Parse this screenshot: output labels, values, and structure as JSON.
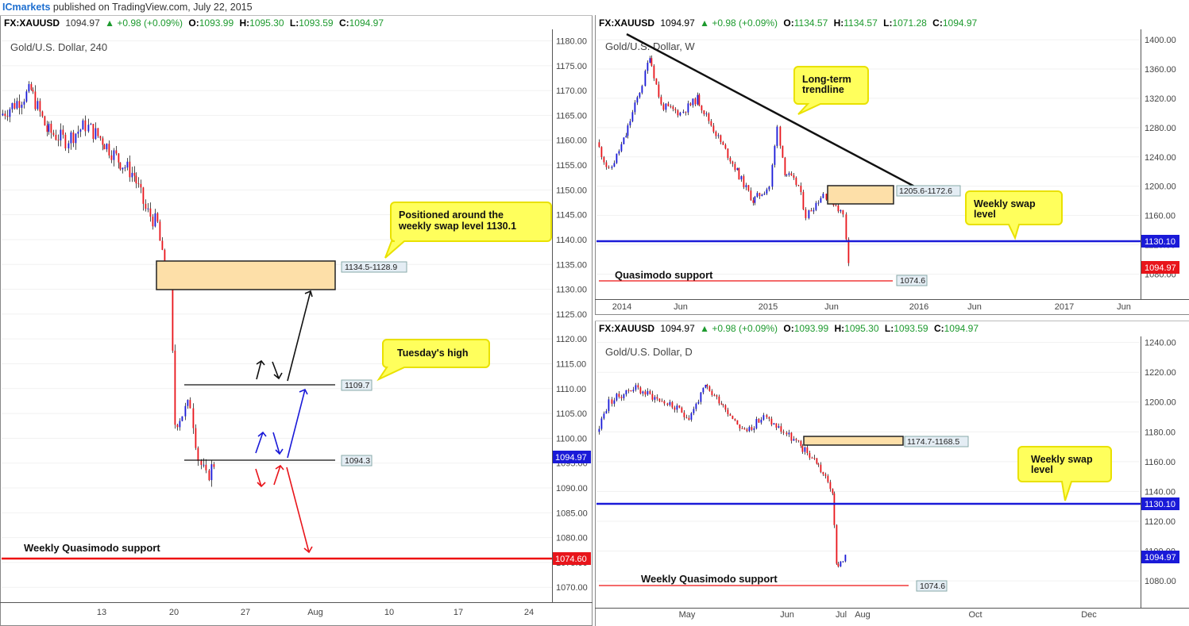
{
  "header": {
    "brand": "ICmarkets",
    "published": " published on TradingView.com, July 22, 2015"
  },
  "colors": {
    "bull": "#1a1ad8",
    "bear": "#e8151b",
    "ohlc_green": "#1d9a2e",
    "callout_fill": "#ffff5c",
    "callout_border": "#e9e100",
    "zone_fill": "#fddfa8"
  },
  "chart_data": [
    {
      "type": "candlestick",
      "symbol_line": {
        "symbol": "FX:XAUUSD",
        "last": "1094.97",
        "change": "+0.98 (+0.09%)",
        "open": "1093.99",
        "high": "1095.30",
        "low": "1093.59",
        "close": "1094.97"
      },
      "title": "Gold/U.S. Dollar, 240",
      "ylim": [
        1067,
        1182
      ],
      "y_ticks": [
        "1070.00",
        "1075.00",
        "1080.00",
        "1085.00",
        "1090.00",
        "1095.00",
        "1100.00",
        "1105.00",
        "1110.00",
        "1115.00",
        "1120.00",
        "1125.00",
        "1130.00",
        "1135.00",
        "1140.00",
        "1145.00",
        "1150.00",
        "1155.00",
        "1160.00",
        "1165.00",
        "1170.00",
        "1175.00",
        "1180.00"
      ],
      "x_ticks": [
        "13",
        "20",
        "27",
        "Aug",
        "10",
        "17",
        "24"
      ],
      "price_badge": "1094.97",
      "levels": [
        {
          "label": "1109.7",
          "value": 1109.7
        },
        {
          "label": "1094.3",
          "value": 1094.3
        },
        {
          "label": "1074.60",
          "value": 1074.6
        }
      ],
      "zone": {
        "label": "1134.5-1128.9",
        "top": 1134.5,
        "bottom": 1128.9
      },
      "annotations": {
        "callout_swap": "Positioned around the weekly swap level 1130.1",
        "callout_tuesday": "Tuesday's high",
        "qm_label": "Weekly Quasimodo support"
      }
    },
    {
      "type": "candlestick",
      "symbol_line": {
        "symbol": "FX:XAUUSD",
        "last": "1094.97",
        "change": "+0.98 (+0.09%)",
        "open": "1134.57",
        "high": "1134.57",
        "low": "1071.28",
        "close": "1094.97"
      },
      "title": "Gold/U.S. Dollar, W",
      "ylim": [
        1048,
        1412
      ],
      "y_ticks": [
        "1080.00",
        "1120.00",
        "1160.00",
        "1200.00",
        "1240.00",
        "1280.00",
        "1320.00",
        "1360.00",
        "1400.00"
      ],
      "x_ticks": [
        "2014",
        "Jun",
        "2015",
        "Jun",
        "2016",
        "Jun",
        "2017",
        "Jun"
      ],
      "swap_badge": "1130.10",
      "price_badge": "1094.97",
      "zone": {
        "label": "1205.6-1172.6",
        "top": 1205.6,
        "bottom": 1172.6
      },
      "levels": [
        {
          "label": "1130.10",
          "value": 1130.1
        },
        {
          "label": "1074.6",
          "value": 1074.6
        }
      ],
      "annotations": {
        "callout_trend": "Long-term trendline",
        "callout_swap": "Weekly swap level",
        "qm_label": "Quasimodo support"
      }
    },
    {
      "type": "candlestick",
      "symbol_line": {
        "symbol": "FX:XAUUSD",
        "last": "1094.97",
        "change": "+0.98 (+0.09%)",
        "open": "1093.99",
        "high": "1095.30",
        "low": "1093.59",
        "close": "1094.97"
      },
      "title": "Gold/U.S. Dollar, D",
      "ylim": [
        1063,
        1243
      ],
      "y_ticks": [
        "1080.00",
        "1100.00",
        "1120.00",
        "1140.00",
        "1160.00",
        "1180.00",
        "1200.00",
        "1220.00",
        "1240.00"
      ],
      "x_ticks": [
        "May",
        "Jun",
        "Jul",
        "Aug",
        "Oct",
        "Dec"
      ],
      "swap_badge": "1130.10",
      "price_badge": "1094.97",
      "zone": {
        "label": "1174.7-1168.5",
        "top": 1174.7,
        "bottom": 1168.5
      },
      "levels": [
        {
          "label": "1130.10",
          "value": 1130.1
        },
        {
          "label": "1074.6",
          "value": 1074.6
        }
      ],
      "annotations": {
        "callout_swap": "Weekly swap level",
        "qm_label": "Weekly Quasimodo support"
      }
    }
  ]
}
